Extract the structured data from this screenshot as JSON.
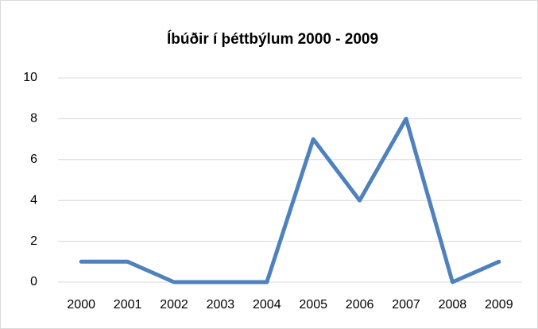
{
  "chart_data": {
    "type": "line",
    "title": "Íbúðir í þéttbýlum 2000 - 2009",
    "categories": [
      "2000",
      "2001",
      "2002",
      "2003",
      "2004",
      "2005",
      "2006",
      "2007",
      "2008",
      "2009"
    ],
    "values": [
      1,
      1,
      0,
      0,
      0,
      7,
      4,
      8,
      0,
      1
    ],
    "color": "#4f81bd",
    "ylim": [
      0,
      10
    ],
    "yticks": [
      0,
      2,
      4,
      6,
      8,
      10
    ],
    "grid": true
  }
}
